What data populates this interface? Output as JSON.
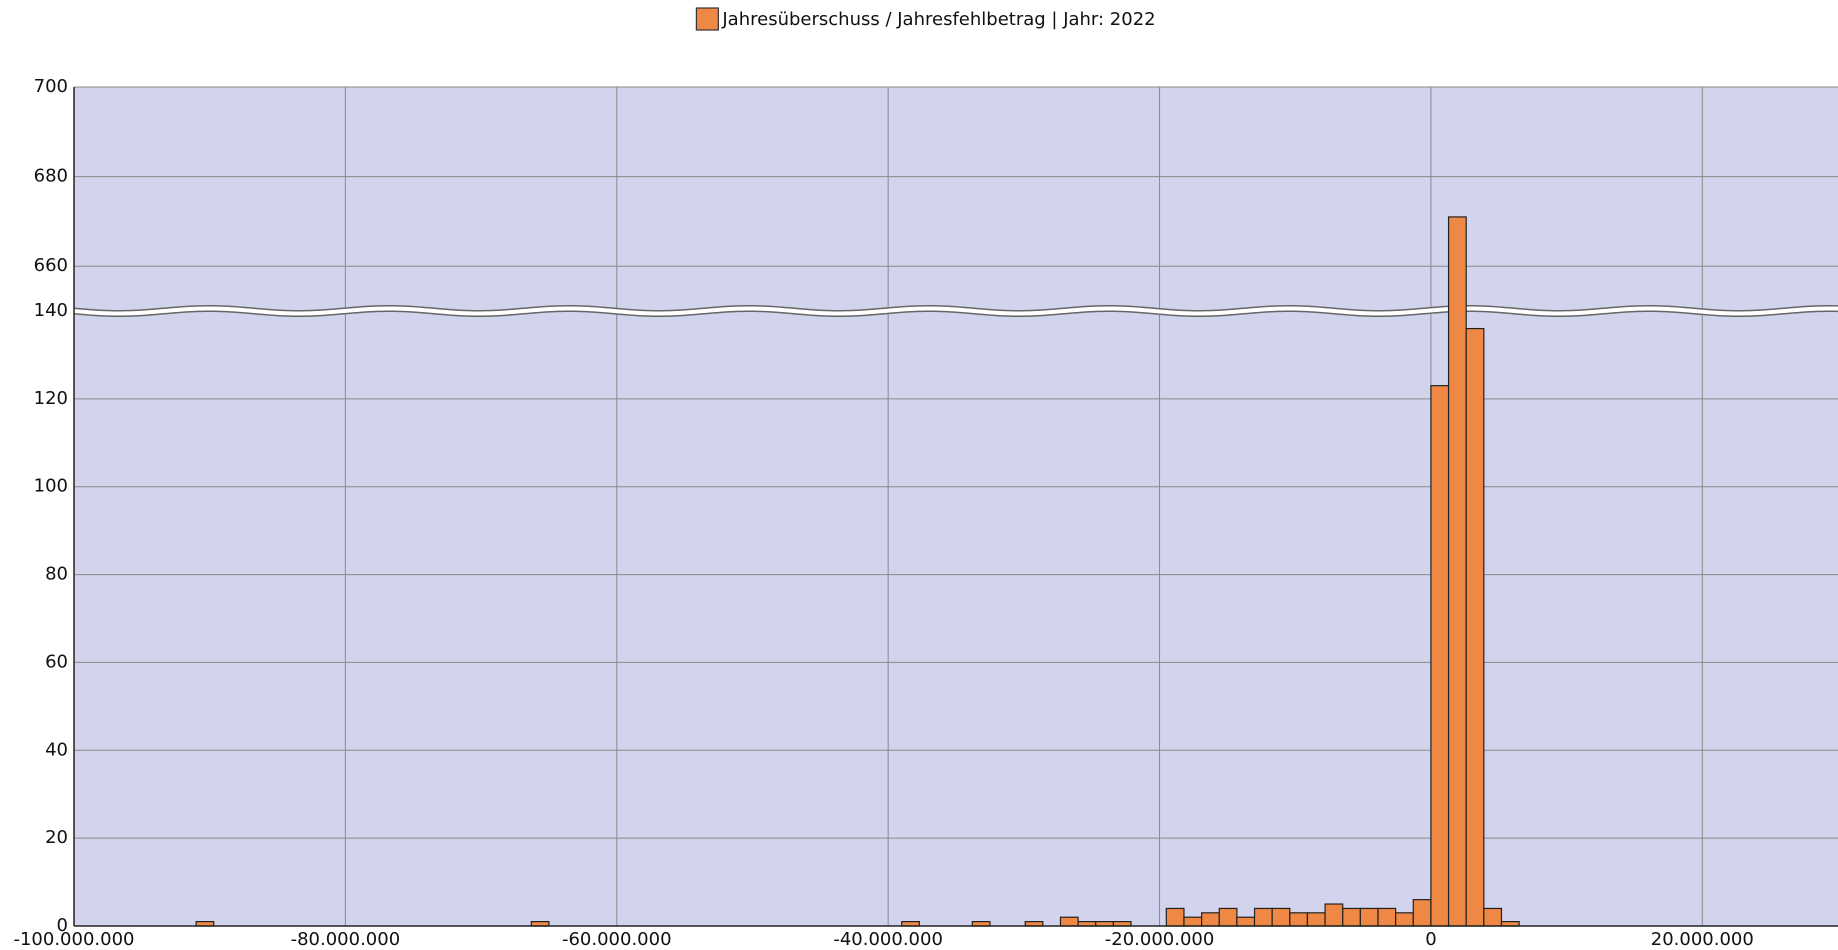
{
  "chart_data": {
    "type": "histogram",
    "series": [
      {
        "name": "Jahresüberschuss / Jahresfehlbetrag | Jahr: 2022",
        "color": "#ee8844",
        "values": [
          1,
          0,
          0,
          0,
          0,
          0,
          0,
          0,
          0,
          0,
          0,
          0,
          0,
          0,
          0,
          0,
          0,
          0,
          0,
          1,
          0,
          0,
          0,
          0,
          0,
          0,
          0,
          0,
          0,
          0,
          0,
          0,
          0,
          0,
          0,
          0,
          0,
          0,
          0,
          0,
          1,
          0,
          0,
          0,
          1,
          0,
          0,
          1,
          0,
          2,
          1,
          1,
          1,
          0,
          0,
          4,
          2,
          3,
          4,
          2,
          4,
          4,
          3,
          3,
          5,
          4,
          4,
          4,
          3,
          6,
          123,
          671,
          136,
          4,
          1
        ]
      }
    ],
    "bins": [
      -91000000,
      -89700000,
      -88400000,
      -87100000,
      -85800000,
      -84500000,
      -83200000,
      -81900000,
      -80600000,
      -79300000,
      -78000000,
      -76700000,
      -75400000,
      -74100000,
      -72800000,
      -71500000,
      -70200000,
      -68900000,
      -67600000,
      -66300000,
      -65000000,
      -63700000,
      -62400000,
      -61100000,
      -59800000,
      -58500000,
      -57200000,
      -55900000,
      -54600000,
      -53300000,
      -52000000,
      -50700000,
      -49400000,
      -48100000,
      -46800000,
      -45500000,
      -44200000,
      -42900000,
      -41600000,
      -40300000,
      -39000000,
      -37700000,
      -36400000,
      -35100000,
      -33800000,
      -32500000,
      -31200000,
      -29900000,
      -28600000,
      -27300000,
      -26000000,
      -24700000,
      -23400000,
      -22100000,
      -20800000,
      -19500000,
      -18200000,
      -16900000,
      -15600000,
      -14300000,
      -13000000,
      -11700000,
      -10400000,
      -9100000,
      -7800000,
      -6500000,
      -5200000,
      -3900000,
      -2600000,
      -1300000,
      0,
      1300000,
      2600000,
      3900000,
      5200000,
      6500000
    ],
    "xlim": [
      -100000000,
      30000000
    ],
    "xticks": [
      {
        "value": -100000000,
        "label": "-100.000.000"
      },
      {
        "value": -80000000,
        "label": "-80.000.000"
      },
      {
        "value": -60000000,
        "label": "-60.000.000"
      },
      {
        "value": -40000000,
        "label": "-40.000.000"
      },
      {
        "value": -20000000,
        "label": "-20.000.000"
      },
      0,
      {
        "value": 20000000,
        "label": "20.000.000"
      }
    ],
    "ylim": [
      0,
      700
    ],
    "y_break": [
      140,
      650
    ],
    "yticks": [
      0,
      20,
      40,
      60,
      80,
      100,
      120,
      140,
      660,
      680,
      700
    ],
    "grid": true,
    "legend": "top"
  }
}
